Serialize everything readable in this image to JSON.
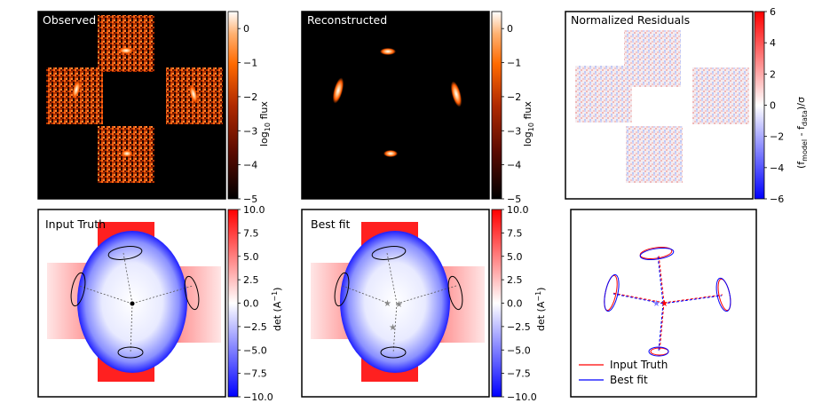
{
  "panels": {
    "observed": {
      "title": "Observed"
    },
    "reconstructed": {
      "title": "Reconstructed"
    },
    "residuals": {
      "title": "Normalized Residuals"
    },
    "input_truth": {
      "title": "Input Truth"
    },
    "best_fit": {
      "title": "Best fit"
    }
  },
  "colorbars": {
    "flux": {
      "label_main": "log",
      "label_sub": "10",
      "label_rest": " flux",
      "ticks": [
        "0",
        "−1",
        "−2",
        "−3",
        "−4",
        "−5"
      ],
      "tick_values": [
        0,
        -1,
        -2,
        -3,
        -4,
        -5
      ],
      "range": [
        -5,
        0.5
      ]
    },
    "residual": {
      "label": "(f_model - f_data)/σ",
      "label_a": "(f",
      "label_a_sub": "model",
      "label_b": " - f",
      "label_b_sub": "data",
      "label_c": ")/σ",
      "ticks": [
        "6",
        "4",
        "2",
        "0",
        "−2",
        "−4",
        "−6"
      ],
      "tick_values": [
        6,
        4,
        2,
        0,
        -2,
        -4,
        -6
      ],
      "range": [
        -6,
        6
      ]
    },
    "det": {
      "label_a": "det (A",
      "label_sup": "−1",
      "label_b": ")",
      "ticks": [
        "10.0",
        "7.5",
        "5.0",
        "2.5",
        "0.0",
        "−2.5",
        "−5.0",
        "−7.5",
        "−10.0"
      ],
      "tick_values": [
        10,
        7.5,
        5,
        2.5,
        0,
        -2.5,
        -5,
        -7.5,
        -10
      ],
      "range": [
        -10,
        10
      ]
    }
  },
  "legend": {
    "entries": [
      {
        "label": "Input Truth",
        "color": "#ff0000"
      },
      {
        "label": "Best fit",
        "color": "#0000ff"
      }
    ]
  },
  "colors": {
    "flux_map": [
      "#000000",
      "#5a0a00",
      "#b02a00",
      "#ff6a00",
      "#ffb070",
      "#ffffff"
    ],
    "diverging": [
      "#0000ff",
      "#ffffff",
      "#ff0000"
    ],
    "truth": "#ff0000",
    "fit": "#0000ff"
  }
}
